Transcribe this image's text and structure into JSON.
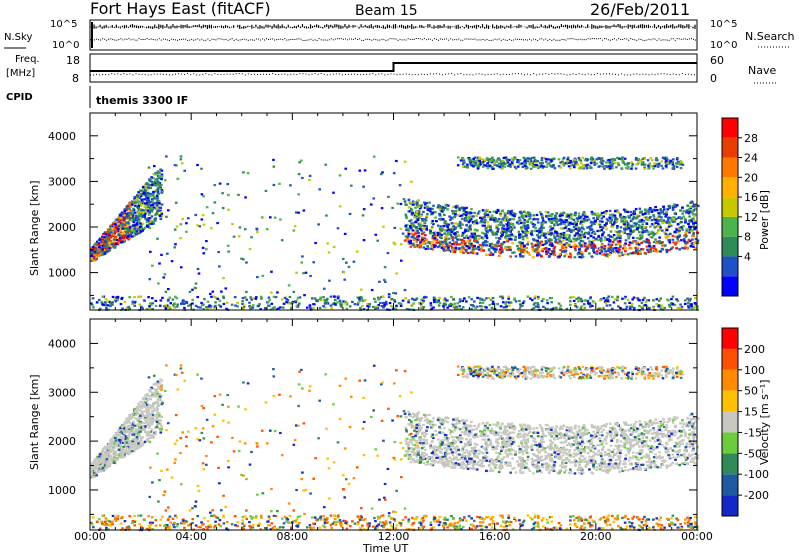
{
  "header": {
    "title": "Fort Hays East (fitACF)",
    "beam": "Beam 15",
    "date": "26/Feb/2011"
  },
  "top_panels": {
    "nsky": {
      "left_label": "N.Sky",
      "right_label": "N.Search",
      "left_ticks": [
        "10^5",
        "10^0"
      ],
      "right_ticks": [
        "10^5",
        "10^0"
      ]
    },
    "freq": {
      "left_label_1": "Freq.",
      "left_label_2": "[MHz]",
      "right_label": "Nave",
      "left_ticks": [
        "18",
        "8"
      ],
      "right_ticks": [
        "60",
        "0"
      ],
      "step_time_hours": 12.0
    },
    "cpid": {
      "label": "CPID",
      "text": "themis 3300 IF"
    }
  },
  "power_panel": {
    "ylabel": "Slant Range [km]",
    "yticks": [
      "4000",
      "3000",
      "2000",
      "1000"
    ],
    "colorbar_label": "Power [dB]",
    "colorbar_ticks": [
      "28",
      "24",
      "20",
      "16",
      "12",
      "8",
      "4"
    ],
    "colors": [
      "#0000ff",
      "#1e50c8",
      "#2e8b57",
      "#4db34d",
      "#c8c800",
      "#ffb000",
      "#ff7800",
      "#e83c00",
      "#ff0000"
    ]
  },
  "velocity_panel": {
    "ylabel": "Slant Range [km]",
    "yticks": [
      "4000",
      "3000",
      "2000",
      "1000"
    ],
    "colorbar_label": "Velocity [m s⁻¹]",
    "colorbar_ticks": [
      "200",
      "100",
      "50",
      "15",
      "-15",
      "-50",
      "-100",
      "-200"
    ],
    "colors": [
      "#1428c8",
      "#1e5aa0",
      "#2e8b57",
      "#6ccc3c",
      "#c8c8c0",
      "#ffc000",
      "#ff8c00",
      "#ff5000",
      "#ff0000"
    ]
  },
  "x_axis": {
    "label": "Time UT",
    "ticks": [
      "00:00",
      "04:00",
      "08:00",
      "12:00",
      "16:00",
      "20:00",
      "00:00"
    ]
  },
  "chart_data": {
    "type": "heatmap",
    "x": {
      "unit": "hours UT",
      "range": [
        0,
        24
      ]
    },
    "y": {
      "unit": "km",
      "range": [
        180,
        4500
      ]
    },
    "echo_regions": [
      {
        "name": "early arc",
        "t_start": 0.0,
        "t_end": 2.8,
        "range_start_km": [
          1250,
          3400
        ],
        "range_end_km": [
          2200,
          3500
        ]
      },
      {
        "name": "main band",
        "t_start": 12.4,
        "t_end": 24.0,
        "range_low_km": 1350,
        "range_high_km": 2600
      },
      {
        "name": "upper band",
        "t_start": 14.5,
        "t_end": 23.5,
        "range_km": [
          3300,
          3550
        ]
      },
      {
        "name": "near range clutter",
        "t_start": 0.0,
        "t_end": 24.0,
        "range_km": [
          200,
          500
        ]
      }
    ]
  }
}
